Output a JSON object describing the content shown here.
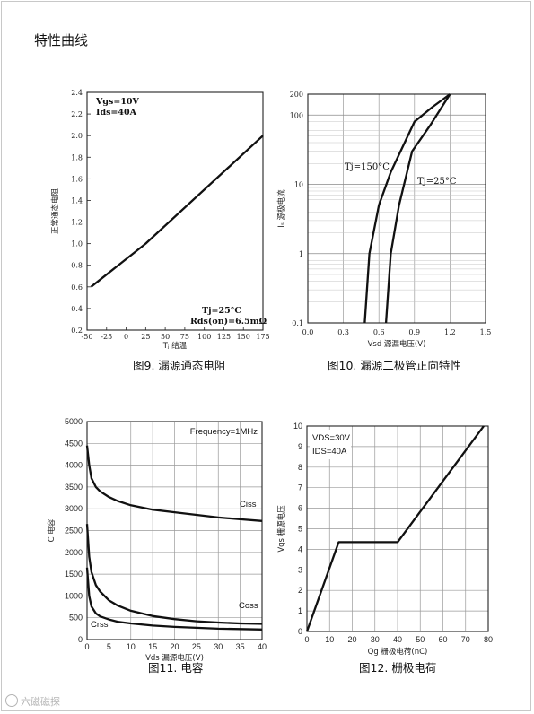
{
  "section_title": "特性曲线",
  "watermark": "六磁磁探",
  "chart_data": [
    {
      "id": "fig9",
      "type": "line",
      "caption": "图9. 漏源通态电阻",
      "xlabel": "Tⱼ 结温",
      "ylabel": "正常通态电阻",
      "xlim": [
        -50,
        175
      ],
      "ylim": [
        0.2,
        2.4
      ],
      "xticks": [
        -50,
        -25,
        0,
        25,
        50,
        75,
        100,
        125,
        150,
        175
      ],
      "yticks": [
        0.2,
        0.4,
        0.6,
        0.8,
        1.0,
        1.2,
        1.4,
        1.6,
        1.8,
        2.0,
        2.2,
        2.4
      ],
      "ytick_labels": [
        "0.2",
        "0.4",
        "0.6",
        "0.8",
        "1.0",
        "1.2",
        "1.4",
        "1.6",
        "1.8",
        "2.0",
        "2.2",
        "2.4"
      ],
      "grid": false,
      "annotations": [
        "Vgs=10V",
        "Ids=40A",
        "Tj=25°C",
        "Rds(on)=6.5mΩ"
      ],
      "series": [
        {
          "x": [
            -45,
            25,
            175
          ],
          "y": [
            0.6,
            1.0,
            2.0
          ]
        }
      ]
    },
    {
      "id": "fig10",
      "type": "line",
      "caption": "图10. 漏源二极管正向特性",
      "xlabel": "Vsd 源漏电压(V)",
      "ylabel": "Iₛ 源极电流",
      "xlim": [
        0,
        1.5
      ],
      "ylim": [
        0.1,
        200
      ],
      "yscale": "log",
      "xticks": [
        0,
        0.3,
        0.6,
        0.9,
        1.2,
        1.5
      ],
      "xtick_labels": [
        "0.0",
        "0.3",
        "0.6",
        "0.9",
        "1.2",
        "1.5"
      ],
      "yticks": [
        0.1,
        1,
        10,
        100,
        200
      ],
      "ytick_labels": [
        "0.1",
        "1",
        "10",
        "100",
        "200"
      ],
      "grid": true,
      "series": [
        {
          "name": "Tj=150°C",
          "x": [
            0.48,
            0.52,
            0.6,
            0.7,
            0.9,
            1.05,
            1.2
          ],
          "y": [
            0.1,
            1,
            5,
            15,
            80,
            130,
            200
          ]
        },
        {
          "name": "Tj=25°C",
          "x": [
            0.66,
            0.7,
            0.77,
            0.88,
            1.03,
            1.2
          ],
          "y": [
            0.1,
            1,
            5,
            30,
            70,
            200
          ]
        }
      ]
    },
    {
      "id": "fig11",
      "type": "line",
      "caption": "图11. 电容",
      "xlabel": "Vds 漏源电压(V)",
      "ylabel": "C 电容",
      "xlim": [
        0,
        40
      ],
      "ylim": [
        0,
        5000
      ],
      "xticks": [
        0,
        5,
        10,
        15,
        20,
        25,
        30,
        35,
        40
      ],
      "yticks": [
        0,
        500,
        1000,
        1500,
        2000,
        2500,
        3000,
        3500,
        4000,
        4500,
        5000
      ],
      "grid": true,
      "annotations": [
        "Frequency=1MHz"
      ],
      "series": [
        {
          "name": "Ciss",
          "x": [
            0,
            0.5,
            1,
            2,
            3,
            5,
            7,
            10,
            15,
            20,
            25,
            30,
            35,
            40
          ],
          "y": [
            4450,
            4000,
            3700,
            3500,
            3400,
            3270,
            3180,
            3080,
            2980,
            2920,
            2860,
            2800,
            2760,
            2720
          ]
        },
        {
          "name": "Coss",
          "x": [
            0,
            0.5,
            1,
            2,
            3,
            5,
            7,
            10,
            15,
            20,
            25,
            30,
            35,
            40
          ],
          "y": [
            2650,
            1900,
            1550,
            1250,
            1100,
            900,
            780,
            660,
            540,
            470,
            420,
            390,
            370,
            360
          ]
        },
        {
          "name": "Crss",
          "x": [
            0,
            0.5,
            1,
            2,
            3,
            5,
            7,
            10,
            15,
            20,
            25,
            30,
            35,
            40
          ],
          "y": [
            1650,
            1000,
            760,
            600,
            530,
            460,
            410,
            370,
            320,
            290,
            270,
            250,
            240,
            230
          ]
        }
      ]
    },
    {
      "id": "fig12",
      "type": "line",
      "caption": "图12. 栅极电荷",
      "xlabel": "Qg 栅极电荷(nC)",
      "ylabel": "Vgs 栅源电压",
      "xlim": [
        0,
        80
      ],
      "ylim": [
        0,
        10
      ],
      "xticks": [
        0,
        10,
        20,
        30,
        40,
        50,
        60,
        70,
        80
      ],
      "yticks": [
        0,
        1,
        2,
        3,
        4,
        5,
        6,
        7,
        8,
        9,
        10
      ],
      "grid": true,
      "annotations": [
        "VDS=30V",
        "IDS=40A"
      ],
      "series": [
        {
          "x": [
            0,
            14,
            40,
            78
          ],
          "y": [
            0,
            4.35,
            4.35,
            10
          ]
        }
      ]
    }
  ]
}
